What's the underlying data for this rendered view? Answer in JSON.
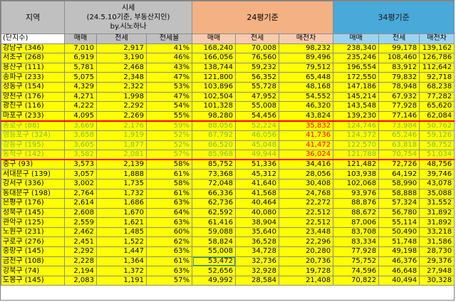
{
  "headers": {
    "region": "지역",
    "price_title_lines": [
      "시세",
      "(24.5.10기준, 부동산지인)",
      "by.시노하나"
    ],
    "p24": "24평기준",
    "p34": "34평기준",
    "unit_label": "(단지수)",
    "sub": [
      "매매",
      "전세",
      "전세율",
      "매매",
      "전세",
      "매전차",
      "매매",
      "전세",
      "매전차"
    ]
  },
  "rows": [
    {
      "region": "강남구 (346)",
      "sale": "7,010",
      "jeonse": "2,917",
      "rate": "41%",
      "s24": "168,240",
      "j24": "70,008",
      "g24": "98,232",
      "s34": "238,340",
      "j34": "99,178",
      "g34": "139,162"
    },
    {
      "region": "서초구 (268)",
      "sale": "6,919",
      "jeonse": "3,190",
      "rate": "46%",
      "s24": "166,056",
      "j24": "76,560",
      "g24": "89,496",
      "s34": "235,246",
      "j34": "108,460",
      "g34": "126,786"
    },
    {
      "region": "용산구 (111)",
      "sale": "5,781",
      "jeonse": "2,468",
      "rate": "43%",
      "s24": "138,744",
      "j24": "59,232",
      "g24": "79,512",
      "s34": "196,554",
      "j34": "83,912",
      "g34": "112,642"
    },
    {
      "region": "송파구 (233)",
      "sale": "5,075",
      "jeonse": "2,348",
      "rate": "47%",
      "s24": "121,800",
      "j24": "56,352",
      "g24": "65,448",
      "s34": "172,550",
      "j34": "79,832",
      "g34": "92,718"
    },
    {
      "region": "성동구 (154)",
      "sale": "4,329",
      "jeonse": "2,322",
      "rate": "53%",
      "s24": "103,896",
      "j24": "55,728",
      "g24": "48,168",
      "s34": "147,186",
      "j34": "78,948",
      "g34": "68,238"
    },
    {
      "region": "양천구 (176)",
      "sale": "4,271",
      "jeonse": "1,998",
      "rate": "47%",
      "s24": "102,504",
      "j24": "47,952",
      "g24": "54,552",
      "s34": "145,214",
      "j34": "67,932",
      "g34": "77,282"
    },
    {
      "region": "광진구 (116)",
      "sale": "4,222",
      "jeonse": "2,292",
      "rate": "54%",
      "s24": "101,328",
      "j24": "55,008",
      "g24": "46,320",
      "s34": "143,548",
      "j34": "77,928",
      "g34": "65,620"
    },
    {
      "region": "마포구 (233)",
      "sale": "4,095",
      "jeonse": "2,269",
      "rate": "55%",
      "s24": "98,280",
      "j24": "54,456",
      "g24": "43,824",
      "s34": "139,230",
      "j34": "77,146",
      "g34": "62,084"
    },
    {
      "region": "종로구 (88)",
      "sale": "3,669",
      "jeonse": "2,176",
      "rate": "59%",
      "s24": "88,056",
      "j24": "52,224",
      "g24": "35,832",
      "s34": "124,746",
      "j34": "73,984",
      "g34": "50,762"
    },
    {
      "region": "영등포구 (324)",
      "sale": "3,658",
      "jeonse": "1,919",
      "rate": "52%",
      "s24": "87,792",
      "j24": "46,056",
      "g24": "41,736",
      "s34": "124,372",
      "j34": "65,246",
      "g34": "59,126"
    },
    {
      "region": "강동구 (195)",
      "sale": "3,605",
      "jeonse": "1,877",
      "rate": "52%",
      "s24": "86,520",
      "j24": "45,048",
      "g24": "41,472",
      "s34": "122,570",
      "j34": "63,818",
      "g34": "58,752"
    },
    {
      "region": "동작구 (142)",
      "sale": "3,582",
      "jeonse": "2,081",
      "rate": "57%",
      "s24": "85,968",
      "j24": "49,944",
      "g24": "36,024",
      "s34": "121,788",
      "j34": "70,754",
      "g34": "51,034"
    },
    {
      "region": "중구 (93)",
      "sale": "3,573",
      "jeonse": "2,139",
      "rate": "58%",
      "s24": "85,752",
      "j24": "51,336",
      "g24": "34,416",
      "s34": "121,482",
      "j34": "72,726",
      "g34": "48,756"
    },
    {
      "region": "서대문구 (139)",
      "sale": "3,057",
      "jeonse": "1,888",
      "rate": "61%",
      "s24": "73,368",
      "j24": "45,312",
      "g24": "28,056",
      "s34": "103,938",
      "j34": "64,192",
      "g34": "39,746"
    },
    {
      "region": "강서구 (336)",
      "sale": "3,002",
      "jeonse": "1,735",
      "rate": "58%",
      "s24": "72,048",
      "j24": "41,640",
      "g24": "30,408",
      "s34": "102,068",
      "j34": "58,990",
      "g34": "43,078"
    },
    {
      "region": "동대문구 (198)",
      "sale": "2,764",
      "jeonse": "1,732",
      "rate": "61%",
      "s24": "66,336",
      "j24": "41,568",
      "g24": "24,768",
      "s34": "93,976",
      "j34": "58,888",
      "g34": "35,088"
    },
    {
      "region": "은평구 (176)",
      "sale": "2,614",
      "jeonse": "1,686",
      "rate": "63%",
      "s24": "62,736",
      "j24": "40,464",
      "g24": "22,272",
      "s34": "88,876",
      "j34": "57,324",
      "g34": "31,552"
    },
    {
      "region": "성북구 (145)",
      "sale": "2,608",
      "jeonse": "1,670",
      "rate": "64%",
      "s24": "62,592",
      "j24": "40,080",
      "g24": "22,512",
      "s34": "88,672",
      "j34": "56,780",
      "g34": "31,892"
    },
    {
      "region": "관악구 (125)",
      "sale": "2,559",
      "jeonse": "1,621",
      "rate": "63%",
      "s24": "61,416",
      "j24": "38,904",
      "g24": "22,512",
      "s34": "87,006",
      "j34": "55,114",
      "g34": "31,892"
    },
    {
      "region": "노원구 (231)",
      "sale": "2,462",
      "jeonse": "1,485",
      "rate": "60%",
      "s24": "59,088",
      "j24": "35,640",
      "g24": "23,448",
      "s34": "83,708",
      "j34": "50,490",
      "g34": "33,218"
    },
    {
      "region": "구로구 (276)",
      "sale": "2,451",
      "jeonse": "1,522",
      "rate": "62%",
      "s24": "58,824",
      "j24": "36,528",
      "g24": "22,296",
      "s34": "83,334",
      "j34": "51,748",
      "g34": "31,586"
    },
    {
      "region": "중랑구 (145)",
      "sale": "2,292",
      "jeonse": "1,447",
      "rate": "63%",
      "s24": "55,008",
      "j24": "34,728",
      "g24": "20,280",
      "s34": "77,928",
      "j34": "49,198",
      "g34": "28,730"
    },
    {
      "region": "금천구 (108)",
      "sale": "2,228",
      "jeonse": "1,364",
      "rate": "61%",
      "s24": "53,472",
      "j24": "32,736",
      "g24": "20,736",
      "s34": "75,752",
      "j34": "46,376",
      "g34": "29,376"
    },
    {
      "region": "강북구 (74)",
      "sale": "2,194",
      "jeonse": "1,372",
      "rate": "63%",
      "s24": "52,656",
      "j24": "32,928",
      "g24": "19,728",
      "s34": "74,596",
      "j34": "46,648",
      "g34": "27,948"
    },
    {
      "region": "도봉구 (145)",
      "sale": "2,083",
      "jeonse": "1,191",
      "rate": "57%",
      "s24": "49,992",
      "j24": "28,584",
      "g24": "21,408",
      "s34": "70,822",
      "j34": "40,494",
      "g34": "30,328"
    }
  ]
}
